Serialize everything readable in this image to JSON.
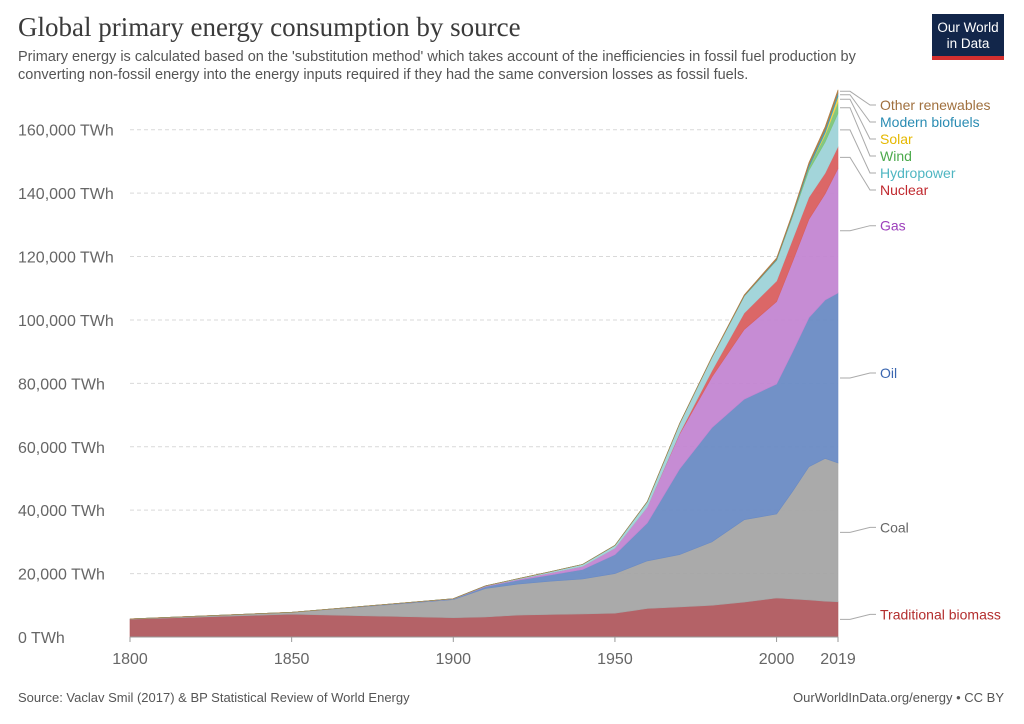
{
  "title": "Global primary energy consumption by source",
  "subtitle": "Primary energy is calculated based on the 'substitution method' which takes account of the inefficiencies in fossil fuel production by converting non-fossil energy into the energy inputs required if they had the same conversion losses as fossil fuels.",
  "logo": {
    "line1": "Our World",
    "line2": "in Data"
  },
  "footer": {
    "source": "Source: Vaclav Smil (2017) & BP Statistical Review of World Energy",
    "url": "OurWorldInData.org/energy • CC BY"
  },
  "chart_data": {
    "type": "area",
    "stacked": true,
    "x": [
      1800,
      1850,
      1900,
      1910,
      1920,
      1930,
      1940,
      1950,
      1960,
      1970,
      1980,
      1990,
      2000,
      2005,
      2010,
      2015,
      2019
    ],
    "xticks": [
      1800,
      1850,
      1900,
      1950,
      2000,
      2019
    ],
    "xlim": [
      1800,
      2019
    ],
    "ylim": [
      0,
      170000
    ],
    "yticks": [
      0,
      20000,
      40000,
      60000,
      80000,
      100000,
      120000,
      140000,
      160000
    ],
    "ytick_labels": [
      "0 TWh",
      "20,000 TWh",
      "40,000 TWh",
      "60,000 TWh",
      "80,000 TWh",
      "100,000 TWh",
      "120,000 TWh",
      "140,000 TWh",
      "160,000 TWh"
    ],
    "grid": true,
    "legend": "right, inline labels",
    "series": [
      {
        "name": "Traditional biomass",
        "color": "#b05a5f",
        "label_color": "#b32e2e",
        "values": [
          5600,
          7200,
          6100,
          6300,
          6900,
          7100,
          7300,
          7500,
          9000,
          9500,
          10000,
          11000,
          12300,
          12000,
          11700,
          11300,
          11100
        ]
      },
      {
        "name": "Coal",
        "color": "#a5a5a5",
        "label_color": "#666666",
        "values": [
          100,
          600,
          5700,
          9000,
          9800,
          10500,
          11000,
          12500,
          15000,
          16500,
          20000,
          26000,
          26500,
          34000,
          42000,
          45000,
          43800
        ]
      },
      {
        "name": "Oil",
        "color": "#6a8bc4",
        "label_color": "#3a66b0",
        "values": [
          0,
          0,
          200,
          600,
          1200,
          2000,
          3000,
          6000,
          12000,
          27000,
          36000,
          38000,
          41000,
          44000,
          47000,
          50000,
          53600
        ]
      },
      {
        "name": "Gas",
        "color": "#c386d2",
        "label_color": "#9c3ebb",
        "values": [
          0,
          0,
          60,
          150,
          300,
          600,
          1000,
          2000,
          5000,
          11000,
          16000,
          22000,
          26000,
          28500,
          31000,
          33500,
          39300
        ]
      },
      {
        "name": "Nuclear",
        "color": "#d95f5f",
        "label_color": "#c0282e",
        "values": [
          0,
          0,
          0,
          0,
          0,
          0,
          0,
          0,
          0,
          300,
          2000,
          5200,
          6500,
          7000,
          7000,
          6500,
          6900
        ]
      },
      {
        "name": "Hydropower",
        "color": "#9ed3d8",
        "label_color": "#4fb6c2",
        "values": [
          0,
          0,
          20,
          100,
          200,
          400,
          600,
          900,
          1700,
          3000,
          4200,
          5300,
          6500,
          7200,
          8500,
          9800,
          10500
        ]
      },
      {
        "name": "Wind",
        "color": "#7cc57a",
        "label_color": "#4caa4c",
        "values": [
          0,
          0,
          0,
          0,
          0,
          0,
          0,
          0,
          0,
          0,
          0,
          10,
          80,
          250,
          900,
          2200,
          3500
        ]
      },
      {
        "name": "Solar",
        "color": "#f2d14d",
        "label_color": "#e5b800",
        "values": [
          0,
          0,
          0,
          0,
          0,
          0,
          0,
          0,
          0,
          0,
          0,
          0,
          5,
          10,
          80,
          700,
          1800
        ]
      },
      {
        "name": "Modern biofuels",
        "color": "#3a9ec2",
        "label_color": "#2a8cb3",
        "values": [
          0,
          0,
          0,
          0,
          0,
          0,
          0,
          0,
          0,
          0,
          50,
          150,
          250,
          400,
          750,
          1000,
          1100
        ]
      },
      {
        "name": "Other renewables",
        "color": "#b07d45",
        "label_color": "#a0703e",
        "values": [
          0,
          0,
          0,
          0,
          0,
          0,
          0,
          0,
          0,
          50,
          100,
          250,
          400,
          500,
          700,
          900,
          1000
        ]
      }
    ]
  }
}
